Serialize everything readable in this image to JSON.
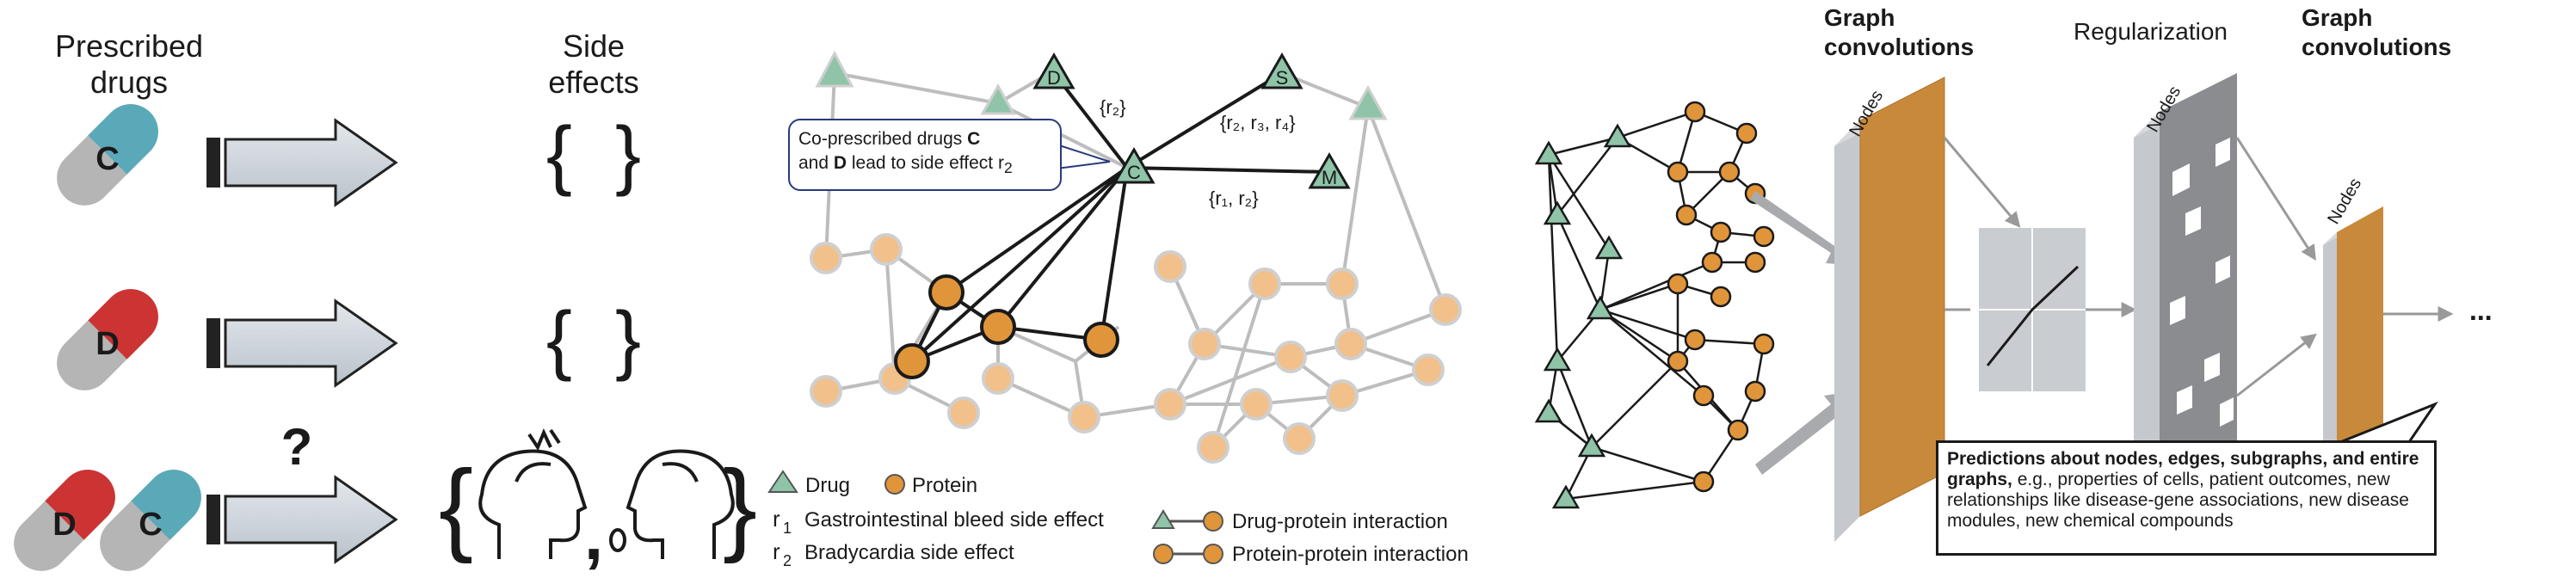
{
  "panel_a": {
    "prescribed_drugs_line1": "Prescribed",
    "prescribed_drugs_line2": "drugs",
    "side_effects_line1": "Side",
    "side_effects_line2": "effects",
    "rows": [
      {
        "pills": [
          "C"
        ],
        "result": "{ }"
      },
      {
        "pills": [
          "D"
        ],
        "result": "{ }"
      },
      {
        "pills": [
          "D",
          "C"
        ],
        "result": "question"
      }
    ],
    "question_mark": "?",
    "comma": ","
  },
  "panel_b": {
    "drug_nodes": {
      "D": "D",
      "S": "S",
      "C": "C",
      "M": "M"
    },
    "edge_label_r2": "{r₂}",
    "edge_label_r234": "{r₂, r₃, r₄}",
    "edge_label_r12": "{r₁, r₂}",
    "bubble_line1_prefix": "Co-prescribed drugs ",
    "bubble_line1_bold": "C",
    "bubble_line2_prefix": "and ",
    "bubble_line2_bold": "D",
    "bubble_line2_suffix": " lead to side effect r",
    "bubble_line2_sub": "2",
    "legend": {
      "drug": "Drug",
      "protein": "Protein",
      "r1_symbol": "r",
      "r1_sub": "1",
      "r1_text": "Gastrointestinal bleed side effect",
      "r2_symbol": "r",
      "r2_sub": "2",
      "r2_text": "Bradycardia side effect",
      "drug_protein": "Drug-protein interaction",
      "protein_protein": "Protein-protein interaction"
    }
  },
  "panel_c": {
    "graph_conv_1_line1": "Graph",
    "graph_conv_1_line2": "convolutions",
    "regularization": "Regularization",
    "graph_conv_2_line1": "Graph",
    "graph_conv_2_line2": "convolutions",
    "nodes_label_1": "Nodes",
    "nodes_label_2": "Nodes",
    "nodes_label_3": "Nodes",
    "ellipsis": "...",
    "prediction_bold": "Predictions about nodes, edges, subgraphs, and entire graphs,",
    "prediction_text": " e.g., properties of cells, patient outcomes, new relationships like disease-gene associations, new disease modules, new chemical compounds"
  },
  "colors": {
    "pill_gray": "#b5b5b5",
    "pill_teal": "#5aa9b8",
    "pill_red": "#cc3333",
    "drug_green": "#8fc4a8",
    "protein_orange": "#e0953a",
    "protein_light": "#f2c08a",
    "slab_orange": "#c9893a",
    "slab_gray": "#a8aaad"
  }
}
